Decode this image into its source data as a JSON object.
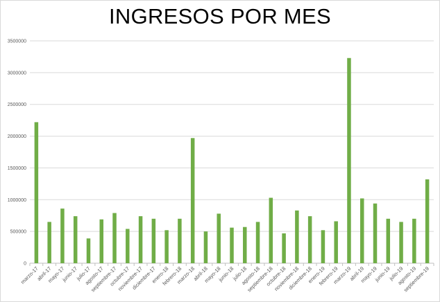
{
  "chart_data": {
    "type": "bar",
    "title": "INGRESOS POR MES",
    "xlabel": "",
    "ylabel": "",
    "ylim": [
      0,
      3500000
    ],
    "yticks": [
      0,
      500000,
      1000000,
      1500000,
      2000000,
      2500000,
      3000000,
      3500000
    ],
    "ytick_labels": [
      "0",
      "500000",
      "1000000",
      "1500000",
      "2000000",
      "2500000",
      "3000000",
      "3500000"
    ],
    "grid": true,
    "legend": "none",
    "bar_color": "#70ad47",
    "categories": [
      "marzo-17",
      "abril-17",
      "mayo-17",
      "junio-17",
      "julio-17",
      "agosto-17",
      "septiembre-17",
      "octubre-17",
      "noviembre-17",
      "diciembre-17",
      "enero-18",
      "febrero-18",
      "marzo-18",
      "abril-18",
      "mayo-18",
      "junio-18",
      "julio-18",
      "agosto-18",
      "septiembre-18",
      "octubre-18",
      "noviembre-18",
      "diciembre-18",
      "enero-19",
      "febrero-19",
      "marzo-19",
      "abril-19",
      "mayo-19",
      "junio-19",
      "julio-19",
      "agosto-19",
      "septiembre-19"
    ],
    "values": [
      2220000,
      650000,
      860000,
      740000,
      390000,
      690000,
      790000,
      540000,
      740000,
      700000,
      520000,
      700000,
      1970000,
      500000,
      780000,
      560000,
      570000,
      650000,
      1030000,
      470000,
      830000,
      740000,
      520000,
      660000,
      3230000,
      1020000,
      940000,
      700000,
      650000,
      700000,
      1320000
    ]
  }
}
